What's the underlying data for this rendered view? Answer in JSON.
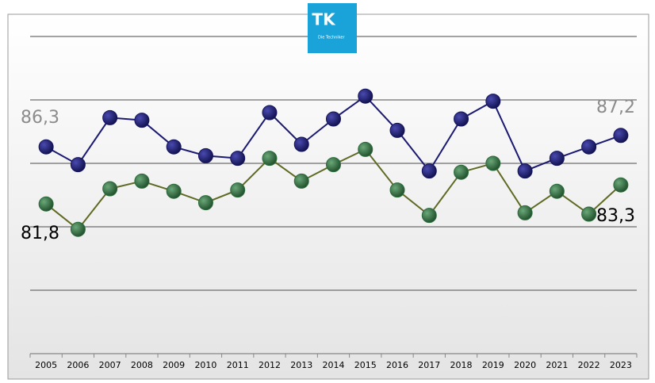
{
  "logo": {
    "mark": "TK",
    "text": "Die Techniker"
  },
  "chart_data": {
    "type": "line",
    "categories": [
      "2005",
      "2006",
      "2007",
      "2008",
      "2009",
      "2010",
      "2011",
      "2012",
      "2013",
      "2014",
      "2015",
      "2016",
      "2017",
      "2018",
      "2019",
      "2020",
      "2021",
      "2022",
      "2023"
    ],
    "series": [
      {
        "color": "#1b1a72",
        "marker_color": "#14145e",
        "label_color": "#8c8c8c",
        "values": [
          86.3,
          84.9,
          88.6,
          88.4,
          86.3,
          85.6,
          85.4,
          89.0,
          86.5,
          88.5,
          90.3,
          87.6,
          84.4,
          88.5,
          89.9,
          84.4,
          85.4,
          86.3,
          87.2
        ],
        "value_labels": [
          "86,3",
          null,
          null,
          null,
          null,
          null,
          null,
          null,
          null,
          null,
          null,
          null,
          null,
          null,
          null,
          null,
          null,
          null,
          "87,2"
        ]
      },
      {
        "color": "#5f6a24",
        "marker_color": "#2c6b3c",
        "label_color": "#000000",
        "values": [
          81.8,
          79.8,
          83.0,
          83.6,
          82.8,
          81.9,
          82.9,
          85.4,
          83.6,
          84.9,
          86.1,
          82.9,
          80.9,
          84.3,
          85.0,
          81.1,
          82.8,
          81.0,
          83.3
        ],
        "value_labels": [
          "81,8",
          null,
          null,
          null,
          null,
          null,
          null,
          null,
          null,
          null,
          null,
          null,
          null,
          null,
          null,
          null,
          null,
          null,
          "83,3"
        ]
      }
    ],
    "ylim": [
      70,
      95
    ],
    "yticks": [
      70,
      75,
      80,
      85,
      90,
      95
    ],
    "grid": true
  }
}
